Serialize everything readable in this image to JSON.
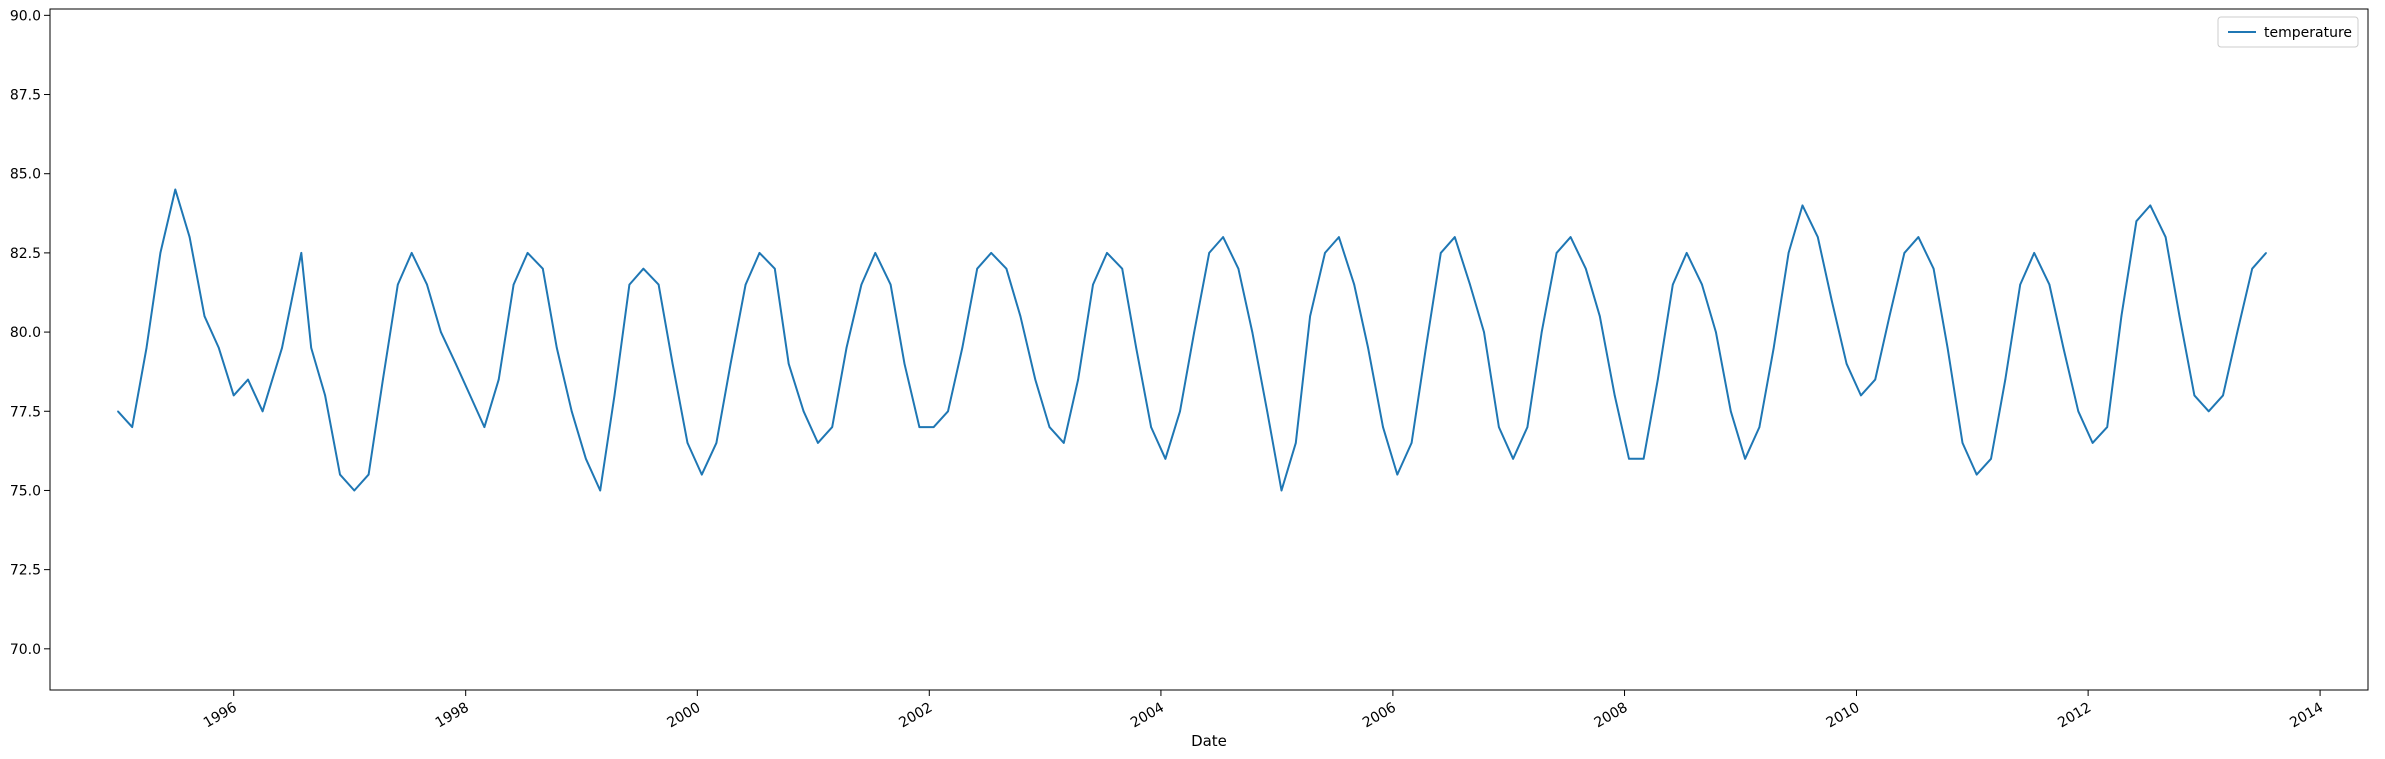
{
  "chart_data": {
    "type": "line",
    "xlabel": "Date",
    "ylabel": "",
    "xlim": [
      "1994-06-01",
      "2014-06-01"
    ],
    "ylim": [
      68.7,
      90.2
    ],
    "yticks": [
      70.0,
      72.5,
      75.0,
      77.5,
      80.0,
      82.5,
      85.0,
      87.5,
      90.0
    ],
    "ytick_labels": [
      "70.0",
      "72.5",
      "75.0",
      "77.5",
      "80.0",
      "82.5",
      "85.0",
      "87.5",
      "90.0"
    ],
    "xticks": [
      "1996-01-01",
      "1998-01-01",
      "2000-01-01",
      "2002-01-01",
      "2004-01-01",
      "2006-01-01",
      "2008-01-01",
      "2010-01-01",
      "2012-01-01",
      "2014-01-01"
    ],
    "xtick_labels": [
      "1996",
      "1998",
      "2000",
      "2002",
      "2004",
      "2006",
      "2008",
      "2010",
      "2012",
      "2014"
    ],
    "grid": false,
    "legend": {
      "position": "top-right",
      "entries": [
        "temperature"
      ]
    },
    "series": [
      {
        "name": "temperature",
        "color": "#1f77b4",
        "x": [
          "1995-01-01",
          "1995-02-15",
          "1995-04-01",
          "1995-05-15",
          "1995-07-01",
          "1995-08-15",
          "1995-10-01",
          "1995-11-15",
          "1996-01-01",
          "1996-02-15",
          "1996-04-01",
          "1996-06-01",
          "1996-08-01",
          "1996-09-01",
          "1996-10-15",
          "1996-12-01",
          "1997-01-15",
          "1997-03-01",
          "1997-04-15",
          "1997-06-01",
          "1997-07-15",
          "1997-09-01",
          "1997-10-15",
          "1997-12-01",
          "1998-01-15",
          "1998-03-01",
          "1998-04-15",
          "1998-06-01",
          "1998-07-15",
          "1998-09-01",
          "1998-10-15",
          "1998-12-01",
          "1999-01-15",
          "1999-03-01",
          "1999-04-15",
          "1999-06-01",
          "1999-07-15",
          "1999-09-01",
          "1999-10-15",
          "1999-12-01",
          "2000-01-15",
          "2000-03-01",
          "2000-04-15",
          "2000-06-01",
          "2000-07-15",
          "2000-09-01",
          "2000-10-15",
          "2000-12-01",
          "2001-01-15",
          "2001-03-01",
          "2001-04-15",
          "2001-06-01",
          "2001-07-15",
          "2001-09-01",
          "2001-10-15",
          "2001-12-01",
          "2002-01-15",
          "2002-03-01",
          "2002-04-15",
          "2002-06-01",
          "2002-07-15",
          "2002-09-01",
          "2002-10-15",
          "2002-12-01",
          "2003-01-15",
          "2003-03-01",
          "2003-04-15",
          "2003-06-01",
          "2003-07-15",
          "2003-09-01",
          "2003-10-15",
          "2003-12-01",
          "2004-01-15",
          "2004-03-01",
          "2004-04-15",
          "2004-06-01",
          "2004-07-15",
          "2004-09-01",
          "2004-10-15",
          "2004-12-01",
          "2005-01-15",
          "2005-03-01",
          "2005-04-15",
          "2005-06-01",
          "2005-07-15",
          "2005-09-01",
          "2005-10-15",
          "2005-12-01",
          "2006-01-15",
          "2006-03-01",
          "2006-04-15",
          "2006-06-01",
          "2006-07-15",
          "2006-09-01",
          "2006-10-15",
          "2006-12-01",
          "2007-01-15",
          "2007-03-01",
          "2007-04-15",
          "2007-06-01",
          "2007-07-15",
          "2007-09-01",
          "2007-10-15",
          "2007-12-01",
          "2008-01-15",
          "2008-03-01",
          "2008-04-15",
          "2008-06-01",
          "2008-07-15",
          "2008-09-01",
          "2008-10-15",
          "2008-12-01",
          "2009-01-15",
          "2009-03-01",
          "2009-04-15",
          "2009-06-01",
          "2009-07-15",
          "2009-09-01",
          "2009-10-15",
          "2009-12-01",
          "2010-01-15",
          "2010-03-01",
          "2010-04-15",
          "2010-06-01",
          "2010-07-15",
          "2010-09-01",
          "2010-10-15",
          "2010-12-01",
          "2011-01-15",
          "2011-03-01",
          "2011-04-15",
          "2011-06-01",
          "2011-07-15",
          "2011-09-01",
          "2011-10-15",
          "2011-12-01",
          "2012-01-15",
          "2012-03-01",
          "2012-04-15",
          "2012-06-01",
          "2012-07-15",
          "2012-09-01",
          "2012-10-15",
          "2012-12-01",
          "2013-01-15",
          "2013-03-01",
          "2013-04-15",
          "2013-06-01",
          "2013-07-15"
        ],
        "values": [
          77.5,
          77.0,
          79.5,
          82.5,
          84.5,
          83.0,
          80.5,
          79.5,
          78.0,
          78.5,
          77.5,
          79.5,
          82.5,
          79.5,
          78.0,
          75.5,
          75.0,
          75.5,
          78.5,
          81.5,
          82.5,
          81.5,
          80.0,
          79.0,
          78.0,
          77.0,
          78.5,
          81.5,
          82.5,
          82.0,
          79.5,
          77.5,
          76.0,
          75.0,
          78.0,
          81.5,
          82.0,
          81.5,
          79.0,
          76.5,
          75.5,
          76.5,
          79.0,
          81.5,
          82.5,
          82.0,
          79.0,
          77.5,
          76.5,
          77.0,
          79.5,
          81.5,
          82.5,
          81.5,
          79.0,
          77.0,
          77.0,
          77.5,
          79.5,
          82.0,
          82.5,
          82.0,
          80.5,
          78.5,
          77.0,
          76.5,
          78.5,
          81.5,
          82.5,
          82.0,
          79.5,
          77.0,
          76.0,
          77.5,
          80.0,
          82.5,
          83.0,
          82.0,
          80.0,
          77.5,
          75.0,
          76.5,
          80.5,
          82.5,
          83.0,
          81.5,
          79.5,
          77.0,
          75.5,
          76.5,
          79.5,
          82.5,
          83.0,
          81.5,
          80.0,
          77.0,
          76.0,
          77.0,
          80.0,
          82.5,
          83.0,
          82.0,
          80.5,
          78.0,
          76.0,
          76.0,
          78.5,
          81.5,
          82.5,
          81.5,
          80.0,
          77.5,
          76.0,
          77.0,
          79.5,
          82.5,
          84.0,
          83.0,
          81.0,
          79.0,
          78.0,
          78.5,
          80.5,
          82.5,
          83.0,
          82.0,
          79.5,
          76.5,
          75.5,
          76.0,
          78.5,
          81.5,
          82.5,
          81.5,
          79.5,
          77.5,
          76.5,
          77.0,
          80.5,
          83.5,
          84.0,
          83.0,
          80.5,
          78.0,
          77.5,
          78.0,
          80.0,
          82.0,
          82.5
        ]
      }
    ]
  }
}
